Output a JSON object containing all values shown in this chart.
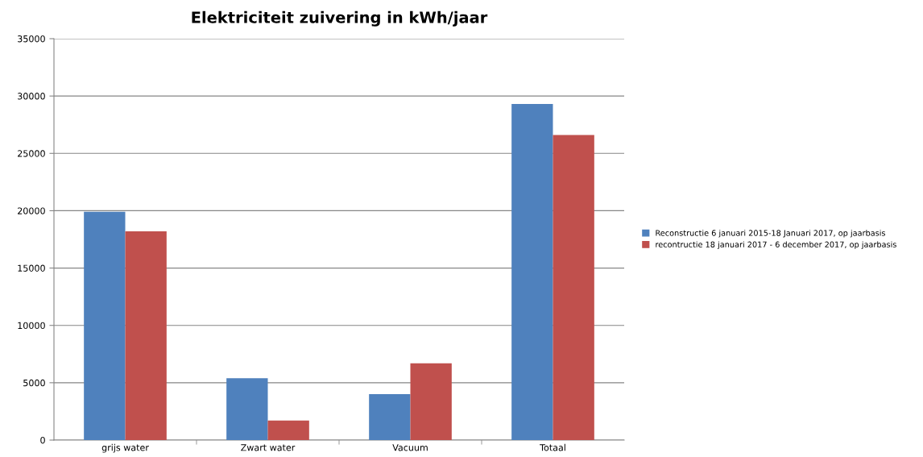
{
  "chart_data": {
    "type": "bar",
    "title": "Elektriciteit zuivering in kWh/jaar",
    "categories": [
      "grijs water",
      "Zwart water",
      "Vacuum",
      "Totaal"
    ],
    "series": [
      {
        "name": "Reconstructie 6 januari 2015-18 Januari 2017, op jaarbasis",
        "color": "#4f81bd",
        "values": [
          19900,
          5400,
          4000,
          29300
        ]
      },
      {
        "name": "recontructie 18 januari 2017 - 6 december 2017, op jaarbasis",
        "color": "#c0504d",
        "values": [
          18200,
          1700,
          6700,
          26600
        ]
      }
    ],
    "ylim": [
      0,
      35000
    ],
    "yticks": [
      0,
      5000,
      10000,
      15000,
      20000,
      25000,
      30000,
      35000
    ],
    "grid": "y",
    "legend": "right"
  }
}
